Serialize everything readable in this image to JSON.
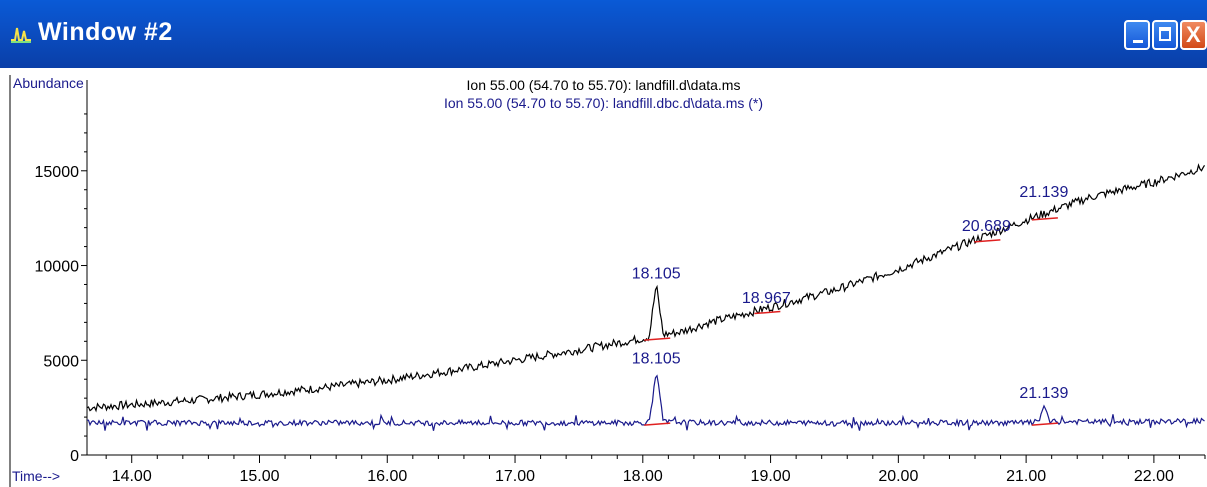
{
  "window": {
    "title": "Window #2",
    "icon": "chromatogram-icon",
    "buttons": {
      "minimize": "minimize-icon",
      "maximize": "maximize-icon",
      "close": "close-icon",
      "close_label": "X"
    }
  },
  "colors": {
    "titlebar": "#0b4fc4",
    "trace1": "#000000",
    "trace2": "#1a1a8c",
    "baseline": "#e02020",
    "label": "#1a1a8c"
  },
  "chart_data": {
    "type": "line",
    "title": "Ion 55.00 (54.70 to 55.70): landfill.d\\data.ms",
    "subtitle": "Ion 55.00 (54.70 to 55.70): landfill.dbc.d\\data.ms (*)",
    "ylabel": "Abundance",
    "xlabel": "Time-->",
    "xlim": [
      13.65,
      22.4
    ],
    "ylim": [
      0,
      19000
    ],
    "yticks": [
      0,
      5000,
      10000,
      15000
    ],
    "ytick_labels": [
      "0",
      "5000",
      "10000",
      "15000"
    ],
    "xticks": [
      14,
      15,
      16,
      17,
      18,
      19,
      20,
      21,
      22
    ],
    "xtick_labels": [
      "14.00",
      "15.00",
      "16.00",
      "17.00",
      "18.00",
      "19.00",
      "20.00",
      "21.00",
      "22.00"
    ],
    "grid": false,
    "series": [
      {
        "name": "Ion 55.00 (54.70 to 55.70): landfill.d\\data.ms",
        "x": [
          13.65,
          14.0,
          14.5,
          15.0,
          15.5,
          16.0,
          16.5,
          17.0,
          17.5,
          18.0,
          18.05,
          18.105,
          18.16,
          18.3,
          18.5,
          19.0,
          19.5,
          20.0,
          20.5,
          21.0,
          21.5,
          22.0,
          22.4
        ],
        "y": [
          2500,
          2650,
          2900,
          3200,
          3550,
          3950,
          4450,
          5000,
          5550,
          6150,
          6250,
          9000,
          6350,
          6500,
          6950,
          7800,
          8700,
          9800,
          11100,
          12400,
          13600,
          14400,
          15200
        ]
      },
      {
        "name": "Ion 55.00 (54.70 to 55.70): landfill.dbc.d\\data.ms (*)",
        "x": [
          13.65,
          14.0,
          15.0,
          16.0,
          17.0,
          18.0,
          18.05,
          18.105,
          18.16,
          18.5,
          19.0,
          20.0,
          21.0,
          21.1,
          21.139,
          21.18,
          21.5,
          22.0,
          22.4
        ],
        "y": [
          1700,
          1700,
          1700,
          1700,
          1700,
          1700,
          1750,
          4500,
          1750,
          1700,
          1700,
          1700,
          1700,
          1750,
          2700,
          1750,
          1750,
          1750,
          1800
        ]
      }
    ],
    "peak_labels_upper": [
      {
        "x": 18.105,
        "y": 9000,
        "text": "18.105"
      },
      {
        "x": 18.967,
        "y": 7700,
        "text": "18.967"
      },
      {
        "x": 20.689,
        "y": 11500,
        "text": "20.689"
      },
      {
        "x": 21.139,
        "y": 13300,
        "text": "21.139"
      }
    ],
    "peak_labels_lower": [
      {
        "x": 18.105,
        "y": 4500,
        "text": "18.105"
      },
      {
        "x": 21.139,
        "y": 2700,
        "text": "21.139"
      }
    ]
  }
}
